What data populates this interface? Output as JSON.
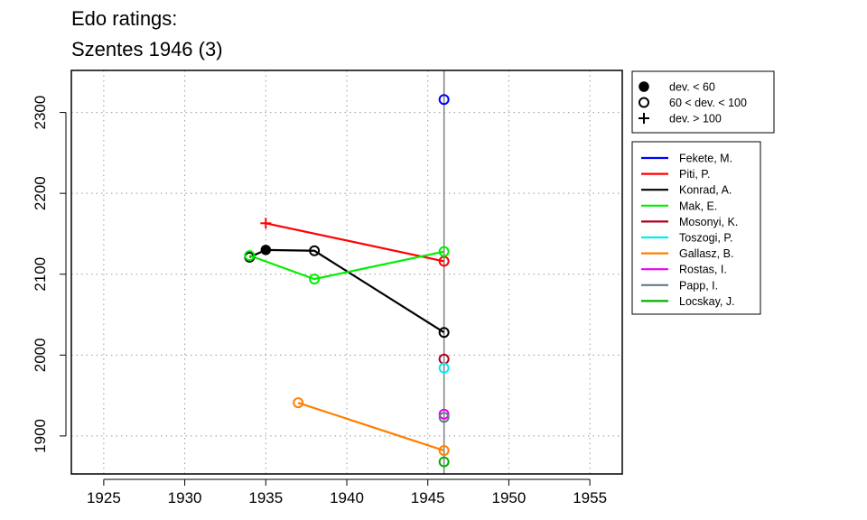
{
  "chart_data": {
    "type": "line",
    "title": "Edo ratings:",
    "subtitle": "Szentes 1946 (3)",
    "xlim": [
      1923,
      1957
    ],
    "ylim": [
      1853,
      2352
    ],
    "xticks": [
      1925,
      1930,
      1935,
      1940,
      1945,
      1950,
      1955
    ],
    "yticks": [
      1900,
      2000,
      2100,
      2200,
      2300
    ],
    "grid": true,
    "event_year": 1946,
    "marker_legend": [
      {
        "label": "dev. < 60",
        "symbol": "filled-circle"
      },
      {
        "label": "60 < dev. < 100",
        "symbol": "open-circle"
      },
      {
        "label": "dev. > 100",
        "symbol": "plus"
      }
    ],
    "series": [
      {
        "name": "Fekete, M.",
        "color": "#0000ff",
        "points": [
          {
            "x": 1946,
            "y": 2316,
            "m": "open"
          }
        ]
      },
      {
        "name": "Piti, P.",
        "color": "#ff0000",
        "points": [
          {
            "x": 1935,
            "y": 2163,
            "m": "plus"
          },
          {
            "x": 1946,
            "y": 2116,
            "m": "open"
          }
        ]
      },
      {
        "name": "Konrad, A.",
        "color": "#000000",
        "points": [
          {
            "x": 1934,
            "y": 2121,
            "m": "open"
          },
          {
            "x": 1935,
            "y": 2130,
            "m": "filled"
          },
          {
            "x": 1938,
            "y": 2129,
            "m": "open"
          },
          {
            "x": 1946,
            "y": 2028,
            "m": "open"
          }
        ]
      },
      {
        "name": "Mak, E.",
        "color": "#00ee00",
        "points": [
          {
            "x": 1934,
            "y": 2123,
            "m": "open"
          },
          {
            "x": 1938,
            "y": 2094,
            "m": "open"
          },
          {
            "x": 1946,
            "y": 2128,
            "m": "open"
          }
        ]
      },
      {
        "name": "Mosonyi, K.",
        "color": "#b0001e",
        "points": [
          {
            "x": 1946,
            "y": 1995,
            "m": "open"
          }
        ]
      },
      {
        "name": "Toszogi, P.",
        "color": "#00eeee",
        "points": [
          {
            "x": 1946,
            "y": 1984,
            "m": "open"
          }
        ]
      },
      {
        "name": "Gallasz, B.",
        "color": "#ff7f00",
        "points": [
          {
            "x": 1937,
            "y": 1941,
            "m": "open"
          },
          {
            "x": 1946,
            "y": 1882,
            "m": "open"
          }
        ]
      },
      {
        "name": "Rostas, I.",
        "color": "#ee00ee",
        "points": [
          {
            "x": 1946,
            "y": 1927,
            "m": "open"
          }
        ]
      },
      {
        "name": "Papp, I.",
        "color": "#607b8b",
        "points": [
          {
            "x": 1946,
            "y": 1923,
            "m": "open"
          }
        ]
      },
      {
        "name": "Locskay, J.",
        "color": "#00b000",
        "points": [
          {
            "x": 1946,
            "y": 1868,
            "m": "open"
          }
        ]
      }
    ]
  }
}
